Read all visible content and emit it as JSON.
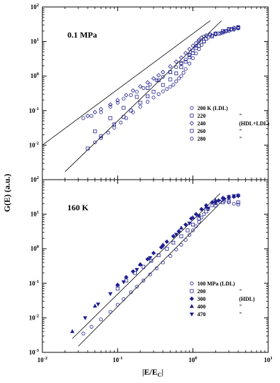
{
  "chart_data": [
    {
      "type": "scatter",
      "panel_label": "0.1 MPa",
      "xlabel": "|E/E_C|",
      "ylabel": "G(E) (a.u.)",
      "xscale": "log",
      "yscale": "log",
      "xlim": [
        0.01,
        10
      ],
      "ylim": [
        0.001,
        100
      ],
      "xticks": [
        "10^-2",
        "10^-1",
        "10^0",
        "10^1"
      ],
      "yticks": [
        "10^-3",
        "10^-2",
        "10^-1",
        "10^0",
        "10^1",
        "10^2"
      ],
      "legend": {
        "placement": "right-middle"
      },
      "series": [
        {
          "name": "200 K (LDL)",
          "note": "",
          "marker": "circle",
          "x": [
            0.05,
            0.06,
            0.075,
            0.09,
            0.11,
            0.13,
            0.16,
            0.2,
            0.25,
            0.3,
            0.35,
            0.4,
            0.45,
            0.5,
            0.55,
            0.6,
            0.65,
            0.7,
            0.75,
            0.8,
            0.9,
            1.0,
            1.1,
            1.2,
            1.3,
            1.4,
            1.6,
            1.8,
            2.0,
            2.3,
            2.6,
            3.0,
            3.5,
            4.0
          ],
          "y": [
            0.012,
            0.016,
            0.023,
            0.032,
            0.045,
            0.06,
            0.09,
            0.13,
            0.18,
            0.24,
            0.3,
            0.36,
            0.42,
            0.49,
            0.56,
            0.7,
            0.85,
            1.0,
            1.25,
            1.6,
            2.3,
            3.3,
            4.5,
            6.0,
            8.0,
            10.0,
            13.0,
            15.0,
            16.0,
            17.0,
            19.0,
            22.0,
            25.0,
            26.0
          ]
        },
        {
          "name": "220",
          "note": "\"",
          "marker": "square",
          "x": [
            0.04,
            0.06,
            0.09,
            0.12,
            0.15,
            0.2,
            0.25,
            0.3,
            0.4,
            0.5,
            0.6,
            0.7,
            0.8,
            0.9,
            1.0,
            1.2,
            1.5,
            2.0,
            2.5,
            3.0,
            4.0
          ],
          "y": [
            0.008,
            0.018,
            0.04,
            0.065,
            0.1,
            0.17,
            0.26,
            0.35,
            0.55,
            0.8,
            1.2,
            1.8,
            2.6,
            3.5,
            4.6,
            7.5,
            12.0,
            17.0,
            20.0,
            23.0,
            26.0
          ]
        },
        {
          "name": "240",
          "note": "(HDL+LDL)",
          "marker": "diamond",
          "x": [
            0.04,
            0.05,
            0.06,
            0.08,
            0.1,
            0.13,
            0.16,
            0.2,
            0.25,
            0.3,
            0.35,
            0.4,
            0.5,
            0.6,
            0.7,
            0.8,
            0.9,
            1.0,
            1.1,
            1.2,
            1.3,
            1.5,
            1.7,
            2.0,
            2.4,
            2.8,
            3.2,
            3.6,
            4.0
          ],
          "y": [
            0.07,
            0.09,
            0.11,
            0.15,
            0.2,
            0.28,
            0.38,
            0.5,
            0.65,
            0.85,
            1.05,
            1.3,
            1.9,
            2.6,
            3.4,
            4.6,
            6.0,
            7.5,
            9.0,
            11.0,
            13.0,
            15.0,
            16.0,
            17.0,
            18.0,
            20.0,
            22.0,
            24.0,
            25.0
          ]
        },
        {
          "name": "260",
          "note": "\"",
          "marker": "square",
          "x": [
            0.05,
            0.08,
            0.12,
            0.18,
            0.25,
            0.35,
            0.5,
            0.7,
            0.9,
            1.1,
            1.4,
            1.8,
            2.2,
            2.7,
            3.3,
            4.0
          ],
          "y": [
            0.025,
            0.06,
            0.12,
            0.25,
            0.45,
            0.75,
            1.3,
            2.4,
            4.0,
            6.5,
            10.0,
            14.0,
            17.0,
            20.0,
            23.0,
            25.0
          ]
        },
        {
          "name": "280",
          "note": "\"",
          "marker": "circle",
          "x": [
            0.035,
            0.045,
            0.06,
            0.08,
            0.1,
            0.12,
            0.15,
            0.18,
            0.22,
            0.27,
            0.33,
            0.4,
            0.5,
            0.6,
            0.7,
            0.8,
            0.9,
            1.0,
            1.1,
            1.2,
            1.4,
            1.7,
            2.0,
            2.5,
            3.0,
            3.5,
            4.0
          ],
          "y": [
            0.06,
            0.07,
            0.09,
            0.13,
            0.17,
            0.22,
            0.28,
            0.35,
            0.45,
            0.57,
            0.75,
            0.95,
            1.3,
            1.8,
            2.3,
            3.0,
            4.2,
            5.5,
            7.5,
            10.0,
            14.0,
            16.0,
            17.0,
            18.0,
            20.0,
            22.0,
            24.0
          ]
        }
      ],
      "fit_lines": [
        {
          "x": [
            0.01,
            1.7
          ],
          "y": [
            0.01,
            40.0
          ]
        },
        {
          "x": [
            0.02,
            2.4
          ],
          "y": [
            0.0017,
            40.0
          ]
        }
      ]
    },
    {
      "type": "scatter",
      "panel_label": "160 K",
      "xlabel": "|E/E_C|",
      "ylabel": "G(E) (a.u.)",
      "xscale": "log",
      "yscale": "log",
      "xlim": [
        0.01,
        10
      ],
      "ylim": [
        0.001,
        100
      ],
      "xticks": [
        "10^-2",
        "10^-1",
        "10^0",
        "10^1"
      ],
      "yticks": [
        "10^-3",
        "10^-2",
        "10^-1",
        "10^0",
        "10^1",
        "10^2"
      ],
      "legend": {
        "placement": "bottom-right"
      },
      "series": [
        {
          "name": "100 MPa (LDL)",
          "note": "",
          "marker": "circle",
          "x": [
            0.035,
            0.045,
            0.06,
            0.08,
            0.1,
            0.12,
            0.15,
            0.18,
            0.22,
            0.27,
            0.33,
            0.4,
            0.5,
            0.6,
            0.7,
            0.8,
            0.9,
            1.0,
            1.1,
            1.2,
            1.3,
            1.4,
            1.6,
            1.8,
            2.0,
            2.3,
            2.6,
            3.0,
            3.5,
            4.0
          ],
          "y": [
            0.0035,
            0.0055,
            0.009,
            0.015,
            0.024,
            0.035,
            0.055,
            0.08,
            0.12,
            0.18,
            0.27,
            0.4,
            0.62,
            0.95,
            1.3,
            1.8,
            2.5,
            3.4,
            4.5,
            6.0,
            8.0,
            10.0,
            14.0,
            18.0,
            21.0,
            23.0,
            24.0,
            22.0,
            20.0,
            19.0
          ]
        },
        {
          "name": "200",
          "note": "\"",
          "marker": "square",
          "x": [
            0.1,
            0.13,
            0.17,
            0.22,
            0.28,
            0.35,
            0.45,
            0.55,
            0.7,
            0.85,
            1.0,
            1.2,
            1.5,
            2.0,
            2.5,
            3.0,
            4.0
          ],
          "y": [
            0.07,
            0.12,
            0.2,
            0.3,
            0.45,
            0.65,
            1.0,
            1.5,
            2.3,
            3.4,
            5.0,
            7.5,
            12.0,
            18.0,
            22.0,
            24.0,
            22.0
          ]
        },
        {
          "name": "300",
          "note": "(HDL)",
          "marker": "diamond-filled",
          "x": [
            0.1,
            0.13,
            0.16,
            0.2,
            0.25,
            0.3,
            0.38,
            0.45,
            0.55,
            0.65,
            0.8,
            0.95,
            1.1,
            1.3,
            1.5,
            1.8,
            2.2,
            2.6,
            3.0,
            3.5,
            4.0
          ],
          "y": [
            0.09,
            0.15,
            0.22,
            0.35,
            0.5,
            0.75,
            1.1,
            1.6,
            2.3,
            3.2,
            5.0,
            7.5,
            10.0,
            14.0,
            18.0,
            22.0,
            25.0,
            28.0,
            30.0,
            32.0,
            34.0
          ]
        },
        {
          "name": "400",
          "note": "\"",
          "marker": "triangle-up",
          "x": [
            0.025,
            0.05,
            0.1,
            0.2,
            0.4,
            0.7,
            1.0,
            1.5,
            2.0,
            2.5,
            3.0,
            3.5,
            4.0
          ],
          "y": [
            0.004,
            0.022,
            0.09,
            0.35,
            1.3,
            4.0,
            8.0,
            16.0,
            25.0,
            30.0,
            32.0,
            33.0,
            35.0
          ]
        },
        {
          "name": "470",
          "note": "\"",
          "marker": "triangle-down",
          "x": [
            0.037,
            0.055,
            0.08,
            0.12,
            0.18,
            0.27,
            0.4,
            0.6,
            0.9,
            1.2,
            1.6,
            2.0,
            2.5,
            3.0,
            3.5,
            4.0
          ],
          "y": [
            0.01,
            0.025,
            0.05,
            0.11,
            0.25,
            0.55,
            1.2,
            2.6,
            5.5,
            9.0,
            15.0,
            22.0,
            28.0,
            32.0,
            34.0,
            35.0
          ]
        }
      ],
      "fit_lines": [
        {
          "x": [
            0.025,
            2.3
          ],
          "y": [
            0.0025,
            40.0
          ]
        },
        {
          "x": [
            0.03,
            2.5
          ],
          "y": [
            0.0015,
            25.0
          ]
        }
      ]
    }
  ],
  "colors": {
    "marker": "#1f1f8f",
    "axis": "#000000",
    "fit_line": "#000000"
  }
}
